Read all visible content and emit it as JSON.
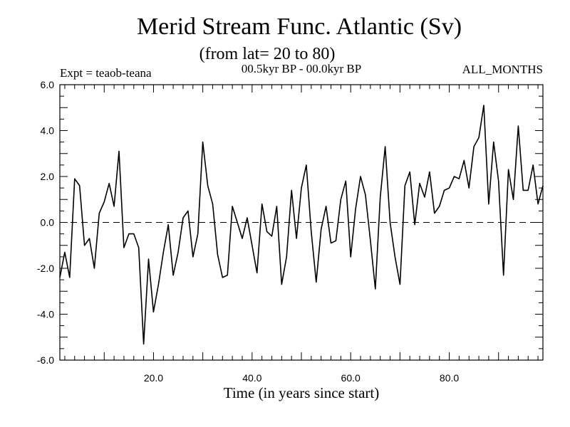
{
  "chart_data": {
    "type": "line",
    "title": "Merid Stream Func. Atlantic (Sv)",
    "subtitle": "(from lat= 20 to 80)",
    "left_note": "Expt = teaob-teana",
    "center_note": "00.5kyr BP - 00.0kyr BP",
    "right_note": "ALL_MONTHS",
    "xlabel": "Time (in years since start)",
    "ylabel": "",
    "xlim": [
      1,
      99
    ],
    "ylim": [
      -6,
      6
    ],
    "xticks": [
      20,
      40,
      60,
      80
    ],
    "xtick_labels": [
      "20.0",
      "40.0",
      "60.0",
      "80.0"
    ],
    "yticks": [
      -6,
      -4,
      -2,
      0,
      2,
      4,
      6
    ],
    "ytick_labels": [
      "-6.0",
      "-4.0",
      "-2.0",
      "0.0",
      "2.0",
      "4.0",
      "6.0"
    ],
    "reference_line": 0,
    "series": [
      {
        "name": "stream function",
        "x": [
          1,
          2,
          3,
          4,
          5,
          6,
          7,
          8,
          9,
          10,
          11,
          12,
          13,
          14,
          15,
          16,
          17,
          18,
          19,
          20,
          21,
          22,
          23,
          24,
          25,
          26,
          27,
          28,
          29,
          30,
          31,
          32,
          33,
          34,
          35,
          36,
          37,
          38,
          39,
          40,
          41,
          42,
          43,
          44,
          45,
          46,
          47,
          48,
          49,
          50,
          51,
          52,
          53,
          54,
          55,
          56,
          57,
          58,
          59,
          60,
          61,
          62,
          63,
          64,
          65,
          66,
          67,
          68,
          69,
          70,
          71,
          72,
          73,
          74,
          75,
          76,
          77,
          78,
          79,
          80,
          81,
          82,
          83,
          84,
          85,
          86,
          87,
          88,
          89,
          90,
          91,
          92,
          93,
          94,
          95,
          96,
          97,
          98,
          99
        ],
        "values": [
          -2.4,
          -1.3,
          -2.4,
          1.9,
          1.6,
          -1.0,
          -0.7,
          -2.0,
          0.4,
          0.9,
          1.7,
          0.7,
          3.1,
          -1.1,
          -0.5,
          -0.5,
          -1.1,
          -5.3,
          -1.6,
          -3.9,
          -2.7,
          -1.3,
          -0.1,
          -2.3,
          -1.3,
          0.2,
          0.5,
          -1.5,
          -0.5,
          3.5,
          1.6,
          0.8,
          -1.4,
          -2.4,
          -2.3,
          0.7,
          0.0,
          -0.7,
          0.2,
          -1.0,
          -2.2,
          0.8,
          -0.4,
          -0.6,
          0.7,
          -2.7,
          -1.5,
          1.4,
          -0.7,
          1.5,
          2.5,
          -0.4,
          -2.6,
          -0.3,
          0.7,
          -0.9,
          -0.8,
          1.0,
          1.8,
          -1.5,
          0.6,
          2.0,
          1.2,
          -0.8,
          -2.9,
          1.1,
          3.3,
          0.0,
          -1.5,
          -2.7,
          1.6,
          2.2,
          -0.1,
          1.7,
          1.1,
          2.2,
          0.4,
          0.7,
          1.4,
          1.5,
          2.0,
          1.9,
          2.7,
          1.5,
          3.3,
          3.7,
          5.1,
          0.8,
          3.5,
          1.8,
          -2.3,
          2.3,
          1.0,
          4.2,
          1.4,
          1.4,
          2.5,
          0.8,
          1.6
        ]
      }
    ]
  }
}
